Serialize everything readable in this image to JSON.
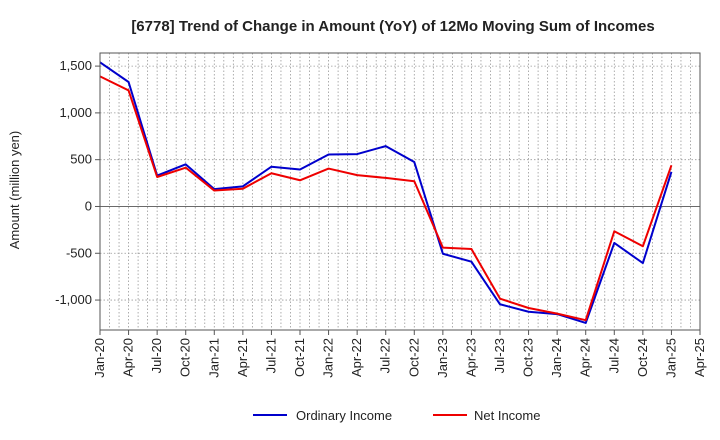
{
  "chart_data": {
    "type": "line",
    "title": "[6778]  Trend of Change in Amount (YoY) of 12Mo Moving Sum of Incomes",
    "xlabel": "",
    "ylabel": "Amount (million yen)",
    "x_ticks": [
      "Jan-20",
      "Apr-20",
      "Jul-20",
      "Oct-20",
      "Jan-21",
      "Apr-21",
      "Jul-21",
      "Oct-21",
      "Jan-22",
      "Apr-22",
      "Jul-22",
      "Oct-22",
      "Jan-23",
      "Apr-23",
      "Jul-23",
      "Oct-23",
      "Jan-24",
      "Apr-24",
      "Jul-24",
      "Oct-24",
      "Jan-25",
      "Apr-25"
    ],
    "y_ticks": [
      1500,
      1000,
      500,
      0,
      -500,
      -1000
    ],
    "y_tick_labels": [
      "1,500",
      "1,000",
      "500",
      "0",
      "-500",
      "-1,000"
    ],
    "ylim": [
      -1320,
      1640
    ],
    "grid": true,
    "legend": "bottom-center",
    "series": [
      {
        "name": "Ordinary Income",
        "color": "#0000cc",
        "x": [
          "Jan-20",
          "Apr-20",
          "Jul-20",
          "Oct-20",
          "Jan-21",
          "Apr-21",
          "Jul-21",
          "Oct-21",
          "Jan-22",
          "Apr-22",
          "Jul-22",
          "Oct-22",
          "Jan-23",
          "Apr-23",
          "Jul-23",
          "Oct-23",
          "Jan-24",
          "Apr-24",
          "Jul-24",
          "Oct-24",
          "Jan-25"
        ],
        "values": [
          1540,
          1330,
          330,
          450,
          185,
          215,
          425,
          395,
          555,
          560,
          645,
          475,
          -505,
          -590,
          -1045,
          -1125,
          -1150,
          -1245,
          -390,
          -605,
          370
        ]
      },
      {
        "name": "Net Income",
        "color": "#ee0000",
        "x": [
          "Jan-20",
          "Apr-20",
          "Jul-20",
          "Oct-20",
          "Jan-21",
          "Apr-21",
          "Jul-21",
          "Oct-21",
          "Jan-22",
          "Apr-22",
          "Jul-22",
          "Oct-22",
          "Jan-23",
          "Apr-23",
          "Jul-23",
          "Oct-23",
          "Jan-24",
          "Apr-24",
          "Jul-24",
          "Oct-24",
          "Jan-25"
        ],
        "values": [
          1390,
          1240,
          315,
          415,
          170,
          190,
          355,
          280,
          405,
          335,
          305,
          270,
          -440,
          -455,
          -985,
          -1085,
          -1145,
          -1215,
          -265,
          -425,
          440
        ]
      }
    ]
  }
}
